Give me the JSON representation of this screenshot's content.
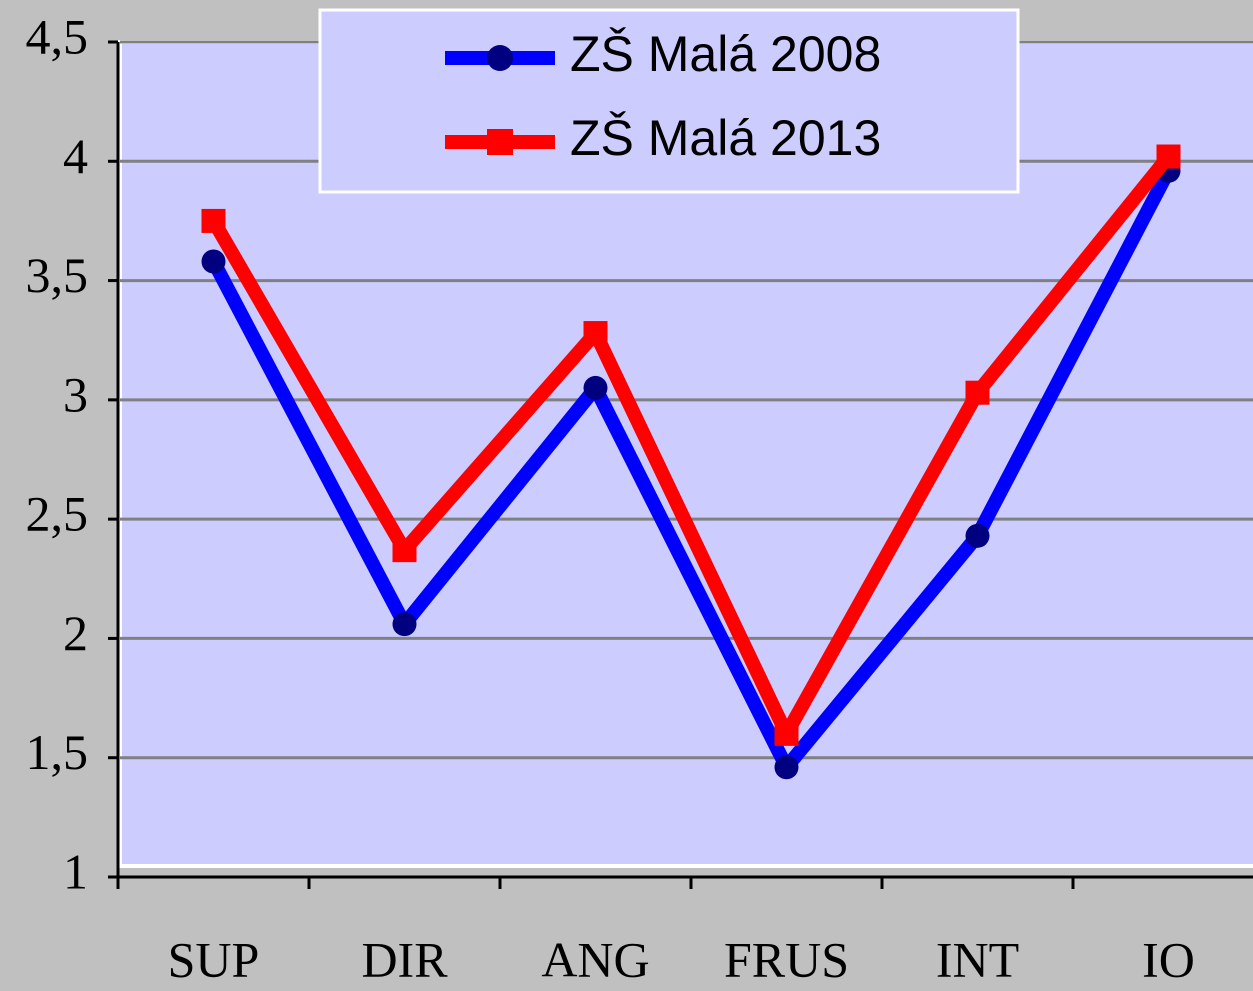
{
  "chart_data": {
    "type": "line",
    "categories": [
      "SUP",
      "DIR",
      "ANG",
      "FRUS",
      "INT",
      "IO"
    ],
    "series": [
      {
        "name": "ZŠ Malá 2008",
        "color": "#0000ff",
        "marker": "circle",
        "values": [
          3.58,
          2.06,
          3.05,
          1.46,
          2.43,
          3.96
        ]
      },
      {
        "name": "ZŠ Malá 2013",
        "color": "#ff0000",
        "marker": "square",
        "values": [
          3.75,
          2.37,
          3.28,
          1.6,
          3.03,
          4.02
        ]
      }
    ],
    "ylim": [
      1,
      4.5
    ],
    "yticks": [
      1,
      {
        "value": 1.5,
        "label": "1,5"
      },
      2,
      {
        "value": 2.5,
        "label": "2,5"
      },
      3,
      {
        "value": 3.5,
        "label": "3,5"
      },
      4,
      {
        "value": 4.5,
        "label": "4,5"
      }
    ],
    "grid": true,
    "legend": "top"
  }
}
